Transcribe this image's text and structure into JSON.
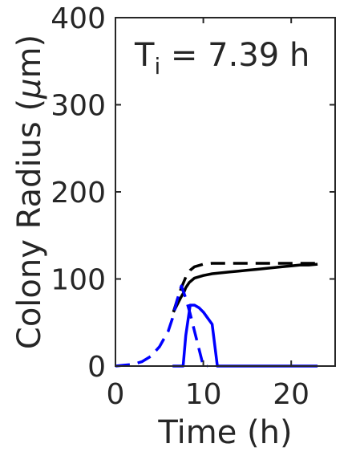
{
  "chart_data": {
    "type": "line",
    "title": "",
    "xlabel": "Time (h)",
    "ylabel_text": "Colony Radius (",
    "ylabel_mu": "μ",
    "ylabel_unit": "m)",
    "annotation_main": "T",
    "annotation_sub": "i",
    "annotation_rest": " = 7.39 h",
    "xlim": [
      0,
      25
    ],
    "ylim": [
      0,
      400
    ],
    "xticks": [
      0,
      10,
      20
    ],
    "xtick_labels": [
      "0",
      "10",
      "20"
    ],
    "yticks": [
      0,
      100,
      200,
      300,
      400
    ],
    "ytick_labels": [
      "0",
      "100",
      "200",
      "300",
      "400"
    ],
    "grid": false,
    "legend": "none",
    "colors": {
      "black": "#000000",
      "blue": "#0000ff",
      "axis": "#262626"
    },
    "series": [
      {
        "color": "#000000",
        "style": "solid",
        "x": [
          6.6,
          7.0,
          7.4,
          7.8,
          8.0,
          8.4,
          9.0,
          10.0,
          11.0,
          12.0,
          13.0,
          14.0,
          15.0,
          16.0,
          17.0,
          18.0,
          19.0,
          20.0,
          21.0,
          22.0,
          23.0
        ],
        "y": [
          62,
          70,
          78,
          85,
          90,
          96,
          101,
          104,
          106,
          107,
          108,
          109,
          110,
          111,
          112,
          113,
          114,
          115,
          116,
          116,
          117
        ]
      },
      {
        "color": "#000000",
        "style": "dashed",
        "x": [
          6.6,
          7.0,
          7.5,
          8.0,
          8.5,
          9.0,
          10.0,
          11.0,
          12.0,
          14.0,
          16.0,
          18.0,
          20.0,
          22.0,
          23.0
        ],
        "y": [
          62,
          75,
          90,
          102,
          110,
          114,
          117,
          118,
          118,
          118,
          118,
          118,
          118,
          118,
          118
        ]
      },
      {
        "color": "#0000ff",
        "style": "solid",
        "x": [
          6.5,
          7.7,
          8.0,
          8.5,
          9.0,
          9.5,
          10.0,
          10.5,
          11.0,
          11.6,
          12.0,
          14.0,
          16.0,
          18.0,
          20.0,
          22.0,
          23.0
        ],
        "y": [
          0,
          0,
          35,
          70,
          70,
          67,
          62,
          55,
          48,
          0,
          0,
          0,
          0,
          0,
          0,
          0,
          0
        ]
      },
      {
        "color": "#0000ff",
        "style": "dashed",
        "x": [
          0,
          1,
          2,
          3,
          4,
          5,
          6,
          6.5,
          7.0,
          7.5,
          8.0,
          8.5,
          9.0,
          9.5,
          10.0,
          10.5
        ],
        "y": [
          0,
          1,
          2,
          5,
          11,
          22,
          40,
          55,
          75,
          92,
          78,
          60,
          40,
          20,
          0,
          0
        ]
      }
    ]
  }
}
